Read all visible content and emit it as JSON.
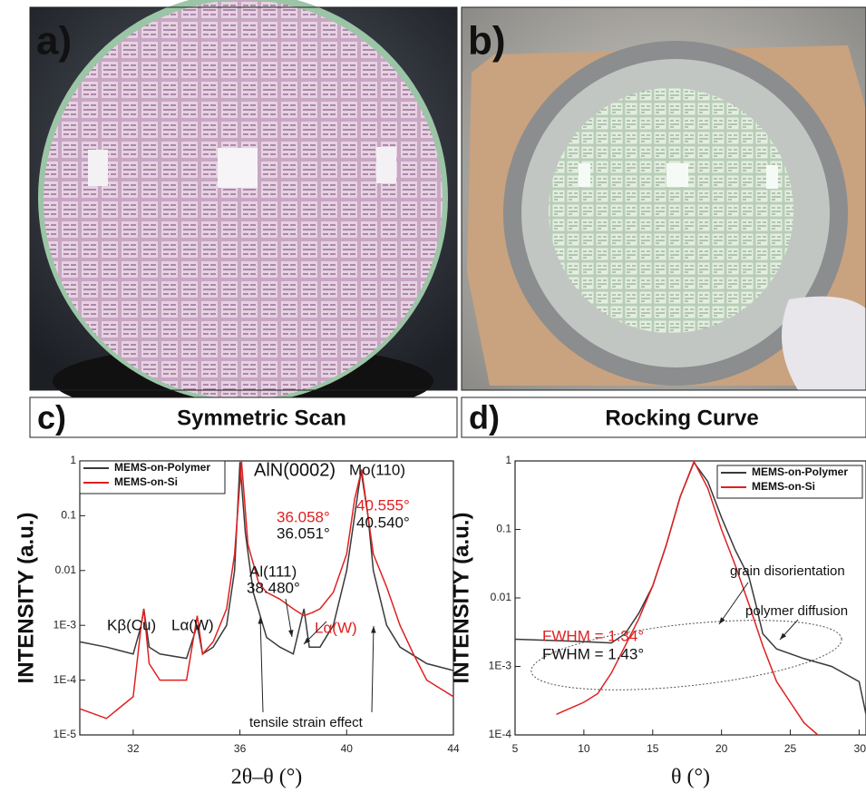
{
  "panels": [
    {
      "label": "a)"
    },
    {
      "label": "b)"
    }
  ],
  "chart_data": [
    {
      "type": "line",
      "panel": "c)",
      "title": "Symmetric Scan",
      "xlabel": "2θ–θ (°)",
      "ylabel": "INTENSITY (a.u.)",
      "xlim": [
        30,
        44
      ],
      "xticks": [
        32,
        36,
        40,
        44
      ],
      "ylog": true,
      "ylim": [
        1e-05,
        1
      ],
      "yticks": [
        {
          "value": 1e-05,
          "label": "1E-5"
        },
        {
          "value": 0.0001,
          "label": "1E-4"
        },
        {
          "value": 0.001,
          "label": "1E-3"
        },
        0.01,
        0.1,
        1
      ],
      "legend": "upper left",
      "series": [
        {
          "name": "MEMS-on-Polymer",
          "color": "#3a3a3a",
          "x": [
            30,
            31,
            32,
            32.3,
            32.4,
            32.6,
            33,
            34,
            34.4,
            34.6,
            35,
            35.5,
            35.8,
            36,
            36.2,
            36.5,
            37,
            37.5,
            38,
            38.4,
            38.6,
            39,
            39.5,
            40,
            40.3,
            40.54,
            40.8,
            41,
            41.5,
            42,
            43,
            44
          ],
          "values": [
            0.0005,
            0.0004,
            0.0003,
            0.001,
            0.002,
            0.0004,
            0.0003,
            0.00025,
            0.001,
            0.0003,
            0.0004,
            0.001,
            0.01,
            0.95,
            0.05,
            0.004,
            0.0006,
            0.0004,
            0.0003,
            0.002,
            0.0004,
            0.0004,
            0.001,
            0.01,
            0.1,
            0.65,
            0.1,
            0.01,
            0.001,
            0.0004,
            0.0002,
            0.00015
          ]
        },
        {
          "name": "MEMS-on-Si",
          "color": "#e02020",
          "x": [
            30,
            31,
            32,
            32.3,
            32.4,
            32.6,
            33,
            34,
            34.4,
            34.6,
            35,
            35.5,
            35.8,
            36.06,
            36.3,
            36.7,
            37,
            37.5,
            38,
            38.4,
            38.7,
            39,
            39.5,
            40,
            40.3,
            40.56,
            40.8,
            41,
            41.5,
            42,
            42.5,
            43,
            44
          ],
          "values": [
            3e-05,
            2e-05,
            5e-05,
            0.001,
            0.002,
            0.0002,
            0.0001,
            0.0001,
            0.0015,
            0.0003,
            0.0005,
            0.002,
            0.02,
            1,
            0.03,
            0.006,
            0.004,
            0.003,
            0.002,
            0.0015,
            0.0017,
            0.002,
            0.004,
            0.02,
            0.2,
            0.7,
            0.1,
            0.02,
            0.005,
            0.001,
            0.0003,
            0.0001,
            5e-05
          ]
        }
      ],
      "annotations": [
        {
          "text": "AlN(0002)"
        },
        {
          "text": "36.058°",
          "color": "#e02020"
        },
        {
          "text": "36.051°"
        },
        {
          "text": "Mo(110)"
        },
        {
          "text": "40.555°",
          "color": "#e02020"
        },
        {
          "text": "40.540°"
        },
        {
          "text": "Al(111)"
        },
        {
          "text": "38.480°"
        },
        {
          "text": "Lα(W)",
          "color": "#e02020"
        },
        {
          "text": "Kβ(Cu)"
        },
        {
          "text": "Lα(W)"
        },
        {
          "text": "tensile strain effect"
        }
      ]
    },
    {
      "type": "line",
      "panel": "d)",
      "title": "Rocking Curve",
      "xlabel": "θ (°)",
      "ylabel": "INTENSITY (a.u.)",
      "xlim": [
        5,
        30.5
      ],
      "xticks": [
        5,
        10,
        15,
        20,
        25,
        30
      ],
      "ylog": true,
      "ylim": [
        0.0001,
        1
      ],
      "yticks": [
        {
          "value": 0.0001,
          "label": "1E-4"
        },
        {
          "value": 0.001,
          "label": "1E-3"
        },
        0.01,
        0.1,
        1
      ],
      "legend": "upper right",
      "series": [
        {
          "name": "MEMS-on-Polymer",
          "color": "#3a3a3a",
          "x": [
            5,
            10,
            12,
            13,
            14,
            15,
            16,
            17,
            18,
            19,
            20,
            21,
            22,
            22.5,
            23,
            24,
            26,
            28,
            30,
            30.5
          ],
          "values": [
            0.0025,
            0.0023,
            0.0022,
            0.003,
            0.006,
            0.015,
            0.06,
            0.3,
            0.95,
            0.5,
            0.15,
            0.05,
            0.02,
            0.008,
            0.003,
            0.0018,
            0.0013,
            0.001,
            0.0006,
            0.0002
          ]
        },
        {
          "name": "MEMS-on-Si",
          "color": "#e02020",
          "x": [
            8,
            10,
            11,
            12,
            13,
            14,
            15,
            16,
            17,
            18,
            19,
            20,
            21,
            22,
            23,
            24,
            25,
            26,
            27
          ],
          "values": [
            0.0002,
            0.0003,
            0.0004,
            0.0008,
            0.002,
            0.005,
            0.015,
            0.06,
            0.3,
            0.98,
            0.4,
            0.1,
            0.03,
            0.008,
            0.002,
            0.0006,
            0.0003,
            0.00015,
            0.0001
          ]
        }
      ],
      "annotations": [
        {
          "text": "FWHM = 1.34°",
          "color": "#e02020"
        },
        {
          "text": "FWHM = 1.43°"
        },
        {
          "text": "grain disorientation"
        },
        {
          "text": "polymer diffusion"
        }
      ]
    }
  ]
}
